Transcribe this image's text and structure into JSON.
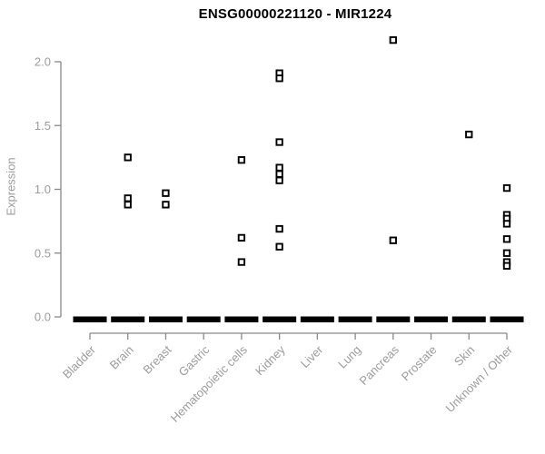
{
  "title": "ENSG00000221120 - MIR1224",
  "chart_data": {
    "type": "scatter",
    "title": "ENSG00000221120 - MIR1224",
    "xlabel": "",
    "ylabel": "Expression",
    "categories": [
      "Bladder",
      "Brain",
      "Breast",
      "Gastric",
      "Hematopoietic cells",
      "Kidney",
      "Liver",
      "Lung",
      "Pancreas",
      "Prostate",
      "Skin",
      "Unknown / Other"
    ],
    "series": [
      {
        "name": "Bladder",
        "values": []
      },
      {
        "name": "Brain",
        "values": [
          1.25,
          0.93,
          0.88
        ]
      },
      {
        "name": "Breast",
        "values": [
          0.97,
          0.88
        ]
      },
      {
        "name": "Gastric",
        "values": []
      },
      {
        "name": "Hematopoietic cells",
        "values": [
          1.23,
          0.62,
          0.43
        ]
      },
      {
        "name": "Kidney",
        "values": [
          1.91,
          1.87,
          1.37,
          1.17,
          1.12,
          1.07,
          0.69,
          0.55
        ]
      },
      {
        "name": "Liver",
        "values": []
      },
      {
        "name": "Lung",
        "values": []
      },
      {
        "name": "Pancreas",
        "values": [
          2.17,
          0.6
        ]
      },
      {
        "name": "Prostate",
        "values": []
      },
      {
        "name": "Skin",
        "values": [
          1.43
        ]
      },
      {
        "name": "Unknown / Other",
        "values": [
          1.01,
          0.8,
          0.77,
          0.73,
          0.61,
          0.5,
          0.43,
          0.4
        ]
      }
    ],
    "zero_cluster_all_categories": true,
    "yticks": [
      0.0,
      0.5,
      1.0,
      1.5,
      2.0
    ],
    "ylim": [
      0,
      2.2
    ],
    "grid": false,
    "legend": "none",
    "marker": "open-square",
    "x_label_rotation_deg": 45,
    "colors": {
      "points": "#000000",
      "zero_bar": "#000000",
      "axis_line": "#898989",
      "tick_labels": "#9c9c9c",
      "title": "#000000",
      "background": "#ffffff"
    }
  }
}
